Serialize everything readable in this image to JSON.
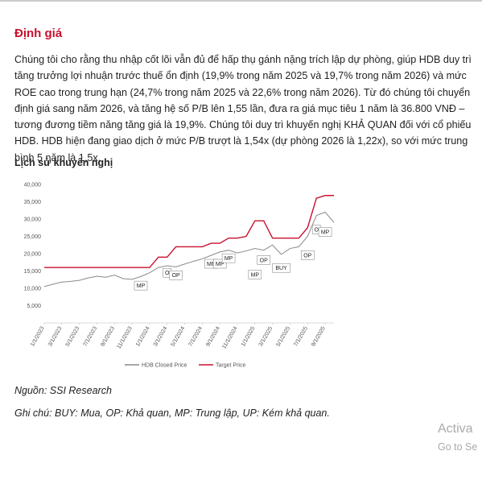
{
  "heading": "Định giá",
  "paragraph": "Chúng tôi cho rằng thu nhập cốt lõi vẫn đủ để hấp thụ gánh nặng trích lập dự phòng, giúp HDB duy trì tăng trưởng lợi nhuận trước thuế ổn định (19,9% trong năm 2025 và 19,7% trong năm 2026) và mức ROE cao trong trung hạn (24,7% trong năm 2025 và 22,6% trong năm 2026). Từ đó chúng tôi chuyển định giá sang năm 2026, và tăng hệ số P/B lên 1,55 lần, đưa ra giá mục tiêu 1 năm là 36.800 VNĐ – tương đương tiềm năng tăng giá là 19,9%. Chúng tôi duy trì khuyến nghị KHẢ QUAN đối với cổ phiếu HDB. HDB hiện đang giao dịch ở mức P/B trượt là 1,54x (dự phòng 2026 là 1,22x), so với mức trung bình 5 năm là 1,5x.",
  "chart_title": "Lịch sử khuyến nghị",
  "source": "Nguồn: SSI Research",
  "note": "Ghi chú: BUY: Mua, OP: Khả quan, MP: Trung lập, UP: Kém khả quan.",
  "watermark": [
    "Activa",
    "Go to Se"
  ],
  "chart_data": {
    "type": "line",
    "x": [
      "1/1/2023",
      "2/1/2023",
      "3/1/2023",
      "4/1/2023",
      "5/1/2023",
      "6/1/2023",
      "7/1/2023",
      "8/1/2023",
      "9/1/2023",
      "10/1/2023",
      "11/1/2023",
      "12/1/2023",
      "1/1/2024",
      "2/1/2024",
      "3/1/2024",
      "4/1/2024",
      "5/1/2024",
      "6/1/2024",
      "7/1/2024",
      "8/1/2024",
      "9/1/2024",
      "10/1/2024",
      "11/1/2024",
      "12/1/2024",
      "1/1/2025",
      "2/1/2025",
      "3/1/2025",
      "4/1/2025",
      "5/1/2025",
      "6/1/2025",
      "7/1/2025",
      "8/1/2025",
      "9/1/2025",
      "10/1/2025"
    ],
    "xticks": [
      "1/1/2023",
      "3/1/2023",
      "5/1/2023",
      "7/1/2023",
      "9/1/2023",
      "11/1/2023",
      "1/1/2024",
      "3/1/2024",
      "5/1/2024",
      "7/1/2024",
      "9/1/2024",
      "11/1/2024",
      "1/1/2025",
      "3/1/2025",
      "5/1/2025",
      "7/1/2025",
      "9/1/2025"
    ],
    "series": [
      {
        "name": "HDB Closed Price",
        "color": "#8a8a8a",
        "values": [
          10500,
          11200,
          11800,
          12000,
          12300,
          13000,
          13500,
          13200,
          13800,
          12800,
          12600,
          13400,
          14500,
          16000,
          16500,
          16200,
          17000,
          17800,
          18500,
          19500,
          20500,
          21000,
          20200,
          20800,
          21500,
          21000,
          22500,
          19800,
          21500,
          22000,
          25000,
          31000,
          32000,
          29000
        ]
      },
      {
        "name": "Target Price",
        "color": "#c8102e",
        "values": [
          16000,
          16000,
          16000,
          16000,
          16000,
          16000,
          16000,
          16000,
          16000,
          16000,
          16000,
          16000,
          16000,
          19000,
          19000,
          22000,
          22000,
          22000,
          22000,
          23000,
          23000,
          24500,
          24500,
          25000,
          29500,
          29500,
          24500,
          24500,
          24500,
          24500,
          27500,
          36000,
          36800,
          36800
        ]
      }
    ],
    "annotations": [
      {
        "text": "MP",
        "x": "12/1/2023",
        "y": 10900
      },
      {
        "text": "O",
        "x": "3/1/2024",
        "y": 14600
      },
      {
        "text": "OP",
        "x": "4/1/2024",
        "y": 13900
      },
      {
        "text": "ME",
        "x": "8/1/2024",
        "y": 17200
      },
      {
        "text": "MP",
        "x": "9/1/2024",
        "y": 17200
      },
      {
        "text": "MP",
        "x": "10/1/2024",
        "y": 18800
      },
      {
        "text": "MP",
        "x": "1/1/2025",
        "y": 14100
      },
      {
        "text": "OP",
        "x": "2/1/2025",
        "y": 18300
      },
      {
        "text": "BUY",
        "x": "4/1/2025",
        "y": 16000
      },
      {
        "text": "OP",
        "x": "7/1/2025",
        "y": 19700
      },
      {
        "text": "O",
        "x": "8/1/2025",
        "y": 27100
      },
      {
        "text": "MP",
        "x": "9/1/2025",
        "y": 26400
      }
    ],
    "ylim": [
      0,
      40000
    ],
    "yticks": [
      {
        "value": 5000,
        "label": "5,000"
      },
      {
        "value": 10000,
        "label": "10,000"
      },
      {
        "value": 15000,
        "label": "15,000"
      },
      {
        "value": 20000,
        "label": "20,000"
      },
      {
        "value": 25000,
        "label": "25,000"
      },
      {
        "value": 30000,
        "label": "30,000"
      },
      {
        "value": 35000,
        "label": "35,000"
      },
      {
        "value": 40000,
        "label": "40,000"
      }
    ]
  }
}
